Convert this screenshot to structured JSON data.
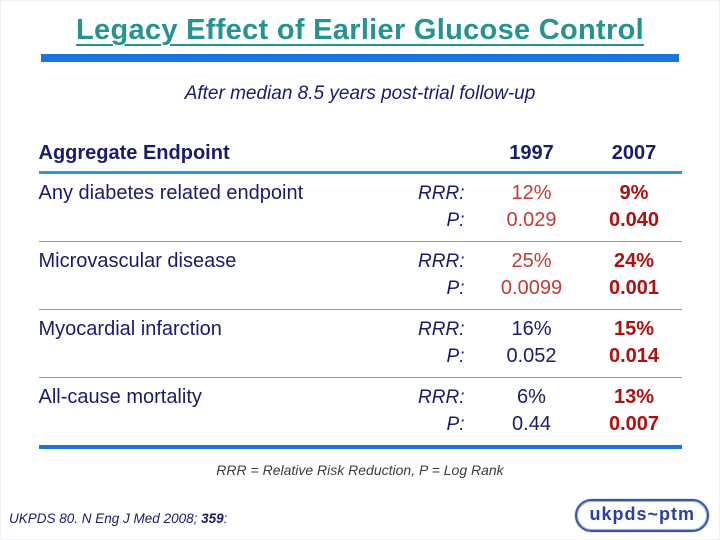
{
  "palette": {
    "teal": "#269390",
    "bar-blue": "#1b75e0",
    "header-line": "#2e95d6",
    "separator": "#5faedc",
    "navy": "#1a1a70",
    "red-1997": "#c23b35",
    "red-2007": "#ae1010",
    "footnote-gray": "#3c3c3c",
    "logo-border": "#3a55a8",
    "logo-text": "#2b3f9e"
  },
  "title": "Legacy Effect of Earlier Glucose Control",
  "subtitle": "After median 8.5 years post-trial follow-up",
  "table": {
    "header": {
      "endpoint": "Aggregate Endpoint",
      "col_1997": "1997",
      "col_2007": "2007"
    },
    "rowLabels": {
      "rrr": "RRR:",
      "p": "P:"
    },
    "rows": [
      {
        "label": "Any diabetes related endpoint",
        "rrr_1997": "12%",
        "p_1997": "0.029",
        "rrr_2007": "9%",
        "p_2007": "0.040",
        "significant_1997": true
      },
      {
        "label": "Microvascular disease",
        "rrr_1997": "25%",
        "p_1997": "0.0099",
        "rrr_2007": "24%",
        "p_2007": "0.001",
        "significant_1997": true
      },
      {
        "label": "Myocardial infarction",
        "rrr_1997": "16%",
        "p_1997": "0.052",
        "rrr_2007": "15%",
        "p_2007": "0.014",
        "significant_1997": false
      },
      {
        "label": "All-cause mortality",
        "rrr_1997": "6%",
        "p_1997": "0.44",
        "rrr_2007": "13%",
        "p_2007": "0.007",
        "significant_1997": false
      }
    ]
  },
  "footnote": "RRR = Relative Risk Reduction, P = Log Rank",
  "citation": {
    "prefix": "UKPDS 80. N Eng J Med 2008; ",
    "volume": "359",
    "suffix": ":"
  },
  "logo": "ukpds~ptm"
}
